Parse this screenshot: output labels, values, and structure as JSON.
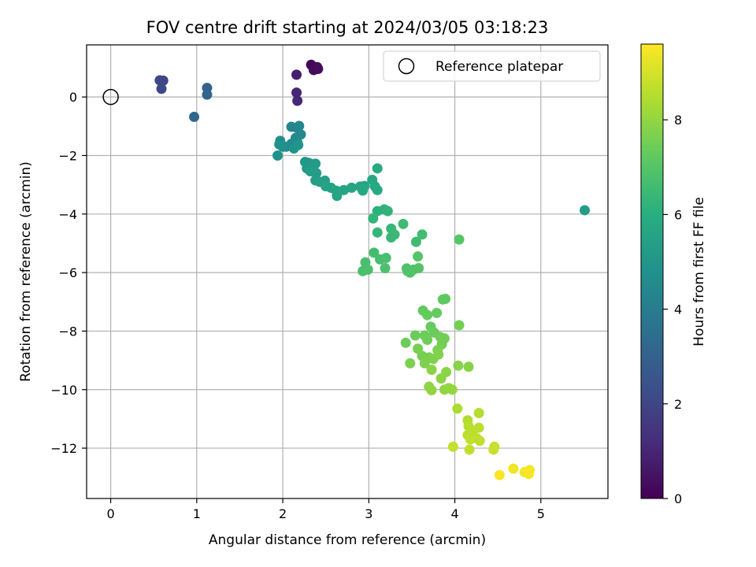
{
  "chart_data": {
    "type": "scatter",
    "title": "FOV centre drift starting at 2024/03/05 03:18:23",
    "xlabel": "Angular distance from reference (arcmin)",
    "ylabel": "Rotation from reference (arcmin)",
    "xlim": [
      -0.28,
      5.78
    ],
    "ylim": [
      -13.72,
      1.78
    ],
    "xticks": [
      0,
      1,
      2,
      3,
      4,
      5
    ],
    "yticks": [
      0,
      -2,
      -4,
      -6,
      -8,
      -10,
      -12
    ],
    "grid": true,
    "legend": {
      "placement": "top-right",
      "entries": [
        "Reference platepar"
      ]
    },
    "reference_point": {
      "x": 0,
      "y": 0,
      "label": "Reference platepar"
    },
    "colorbar": {
      "label": "Hours from first FF file",
      "range": [
        0,
        9.6
      ],
      "ticks": [
        0,
        2,
        4,
        6,
        8
      ],
      "colormap": "viridis"
    },
    "points": [
      [
        2.33,
        1.1,
        0.1
      ],
      [
        2.38,
        0.98,
        0.15
      ],
      [
        2.4,
        1.02,
        0.2
      ],
      [
        2.36,
        0.92,
        0.25
      ],
      [
        2.41,
        0.96,
        0.3
      ],
      [
        2.16,
        0.76,
        0.8
      ],
      [
        2.16,
        0.15,
        1.0
      ],
      [
        2.17,
        -0.13,
        1.05
      ],
      [
        0.57,
        0.57,
        2.0
      ],
      [
        0.61,
        0.56,
        2.05
      ],
      [
        0.59,
        0.28,
        2.1
      ],
      [
        1.12,
        0.31,
        3.0
      ],
      [
        1.12,
        0.08,
        3.1
      ],
      [
        0.97,
        -0.68,
        3.2
      ],
      [
        2.1,
        -1.02,
        4.3
      ],
      [
        2.16,
        -1.05,
        4.35
      ],
      [
        2.19,
        -0.99,
        4.4
      ],
      [
        2.15,
        -1.4,
        4.45
      ],
      [
        2.21,
        -1.28,
        4.5
      ],
      [
        2.17,
        -1.55,
        4.55
      ],
      [
        2.1,
        -1.6,
        4.6
      ],
      [
        2.04,
        -1.7,
        4.65
      ],
      [
        1.97,
        -1.5,
        4.7
      ],
      [
        1.96,
        -1.62,
        4.75
      ],
      [
        2.0,
        -1.7,
        4.8
      ],
      [
        1.94,
        -2.0,
        4.85
      ],
      [
        2.13,
        -1.76,
        4.9
      ],
      [
        2.18,
        -1.64,
        4.92
      ],
      [
        2.26,
        -2.22,
        5.0
      ],
      [
        2.3,
        -2.25,
        5.05
      ],
      [
        2.34,
        -2.3,
        5.1
      ],
      [
        2.28,
        -2.44,
        5.15
      ],
      [
        2.38,
        -2.28,
        5.2
      ],
      [
        2.32,
        -2.54,
        5.25
      ],
      [
        2.39,
        -2.6,
        5.28
      ],
      [
        2.38,
        -2.85,
        5.3
      ],
      [
        2.43,
        -2.9,
        5.35
      ],
      [
        2.49,
        -2.86,
        5.4
      ],
      [
        2.5,
        -3.05,
        5.45
      ],
      [
        2.56,
        -3.1,
        5.5
      ],
      [
        2.62,
        -3.2,
        5.55
      ],
      [
        2.63,
        -3.38,
        5.58
      ],
      [
        2.71,
        -3.18,
        5.6
      ],
      [
        2.8,
        -3.1,
        5.62
      ],
      [
        2.9,
        -3.06,
        5.65
      ],
      [
        2.95,
        -3.04,
        5.68
      ],
      [
        2.93,
        -3.2,
        5.7
      ],
      [
        3.04,
        -2.83,
        5.72
      ],
      [
        3.07,
        -3.05,
        5.75
      ],
      [
        3.1,
        -3.18,
        5.78
      ],
      [
        3.1,
        -2.44,
        5.8
      ],
      [
        5.51,
        -3.87,
        5.3
      ],
      [
        3.1,
        -3.9,
        6.1
      ],
      [
        3.18,
        -3.84,
        6.15
      ],
      [
        3.22,
        -3.9,
        6.2
      ],
      [
        3.05,
        -4.15,
        6.25
      ],
      [
        3.1,
        -4.63,
        6.3
      ],
      [
        3.26,
        -4.5,
        6.35
      ],
      [
        3.26,
        -4.8,
        6.4
      ],
      [
        3.3,
        -4.7,
        6.45
      ],
      [
        3.4,
        -4.34,
        6.5
      ],
      [
        3.55,
        -4.95,
        6.55
      ],
      [
        3.62,
        -4.7,
        6.6
      ],
      [
        3.06,
        -5.32,
        6.65
      ],
      [
        3.13,
        -5.55,
        6.7
      ],
      [
        3.2,
        -5.5,
        6.72
      ],
      [
        2.96,
        -5.65,
        6.75
      ],
      [
        2.93,
        -5.95,
        6.78
      ],
      [
        2.99,
        -5.9,
        6.8
      ],
      [
        3.19,
        -5.85,
        6.82
      ],
      [
        3.44,
        -5.86,
        6.85
      ],
      [
        3.48,
        -6.0,
        6.88
      ],
      [
        3.45,
        -5.95,
        6.9
      ],
      [
        3.52,
        -5.9,
        6.92
      ],
      [
        3.58,
        -5.85,
        6.95
      ],
      [
        3.57,
        -5.45,
        6.97
      ],
      [
        4.05,
        -4.87,
        7.0
      ],
      [
        3.86,
        -6.92,
        7.2
      ],
      [
        3.89,
        -6.9,
        7.22
      ],
      [
        3.63,
        -7.3,
        7.25
      ],
      [
        3.68,
        -7.45,
        7.28
      ],
      [
        3.79,
        -7.38,
        7.3
      ],
      [
        3.72,
        -7.85,
        7.32
      ],
      [
        3.76,
        -8.05,
        7.35
      ],
      [
        3.65,
        -8.15,
        7.38
      ],
      [
        3.54,
        -8.15,
        7.4
      ],
      [
        3.43,
        -8.4,
        7.42
      ],
      [
        3.68,
        -8.3,
        7.45
      ],
      [
        3.83,
        -8.2,
        7.48
      ],
      [
        3.88,
        -8.25,
        7.5
      ],
      [
        3.85,
        -8.45,
        7.52
      ],
      [
        3.57,
        -8.6,
        7.55
      ],
      [
        3.62,
        -8.85,
        7.58
      ],
      [
        3.7,
        -8.9,
        7.6
      ],
      [
        3.8,
        -8.65,
        7.62
      ],
      [
        3.48,
        -9.1,
        7.65
      ],
      [
        3.65,
        -9.1,
        7.68
      ],
      [
        3.75,
        -8.95,
        7.7
      ],
      [
        3.81,
        -8.8,
        7.72
      ],
      [
        4.05,
        -7.8,
        7.5
      ],
      [
        4.04,
        -9.18,
        7.8
      ],
      [
        4.16,
        -9.22,
        7.82
      ],
      [
        3.73,
        -9.32,
        7.85
      ],
      [
        3.9,
        -9.4,
        7.88
      ],
      [
        3.84,
        -9.62,
        7.9
      ],
      [
        3.7,
        -9.9,
        7.92
      ],
      [
        3.73,
        -10.02,
        7.95
      ],
      [
        3.88,
        -10.0,
        7.98
      ],
      [
        3.93,
        -9.95,
        8.0
      ],
      [
        3.97,
        -10.0,
        8.02
      ],
      [
        4.03,
        -10.65,
        8.4
      ],
      [
        4.15,
        -11.05,
        8.45
      ],
      [
        4.28,
        -10.8,
        8.5
      ],
      [
        4.16,
        -11.25,
        8.55
      ],
      [
        4.21,
        -11.4,
        8.58
      ],
      [
        4.28,
        -11.3,
        8.6
      ],
      [
        4.15,
        -11.55,
        8.62
      ],
      [
        4.25,
        -11.65,
        8.65
      ],
      [
        4.29,
        -11.75,
        8.68
      ],
      [
        4.18,
        -11.7,
        8.7
      ],
      [
        4.17,
        -12.05,
        8.72
      ],
      [
        3.98,
        -11.95,
        8.75
      ],
      [
        4.46,
        -11.95,
        8.78
      ],
      [
        4.45,
        -12.05,
        8.8
      ],
      [
        4.68,
        -12.7,
        9.4
      ],
      [
        4.81,
        -12.82,
        9.45
      ],
      [
        4.87,
        -12.75,
        9.48
      ],
      [
        4.86,
        -12.88,
        9.5
      ],
      [
        4.52,
        -12.92,
        9.52
      ]
    ]
  }
}
